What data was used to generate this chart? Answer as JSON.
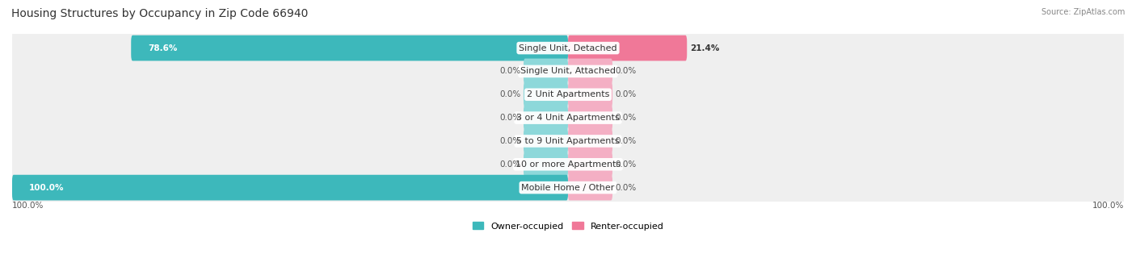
{
  "title": "Housing Structures by Occupancy in Zip Code 66940",
  "source": "Source: ZipAtlas.com",
  "categories": [
    "Single Unit, Detached",
    "Single Unit, Attached",
    "2 Unit Apartments",
    "3 or 4 Unit Apartments",
    "5 to 9 Unit Apartments",
    "10 or more Apartments",
    "Mobile Home / Other"
  ],
  "owner_pct": [
    78.6,
    0.0,
    0.0,
    0.0,
    0.0,
    0.0,
    100.0
  ],
  "renter_pct": [
    21.4,
    0.0,
    0.0,
    0.0,
    0.0,
    0.0,
    0.0
  ],
  "owner_color": "#3db8bb",
  "renter_color": "#f07898",
  "owner_color_light": "#8dd8da",
  "renter_color_light": "#f4afc4",
  "row_bg": "#efefef",
  "title_fontsize": 10,
  "label_fontsize": 8,
  "pct_fontsize": 7.5,
  "source_fontsize": 7,
  "legend_owner": "Owner-occupied",
  "legend_renter": "Renter-occupied",
  "axis_label_left": "100.0%",
  "axis_label_right": "100.0%",
  "stub_size": 8.0,
  "max_val": 100
}
